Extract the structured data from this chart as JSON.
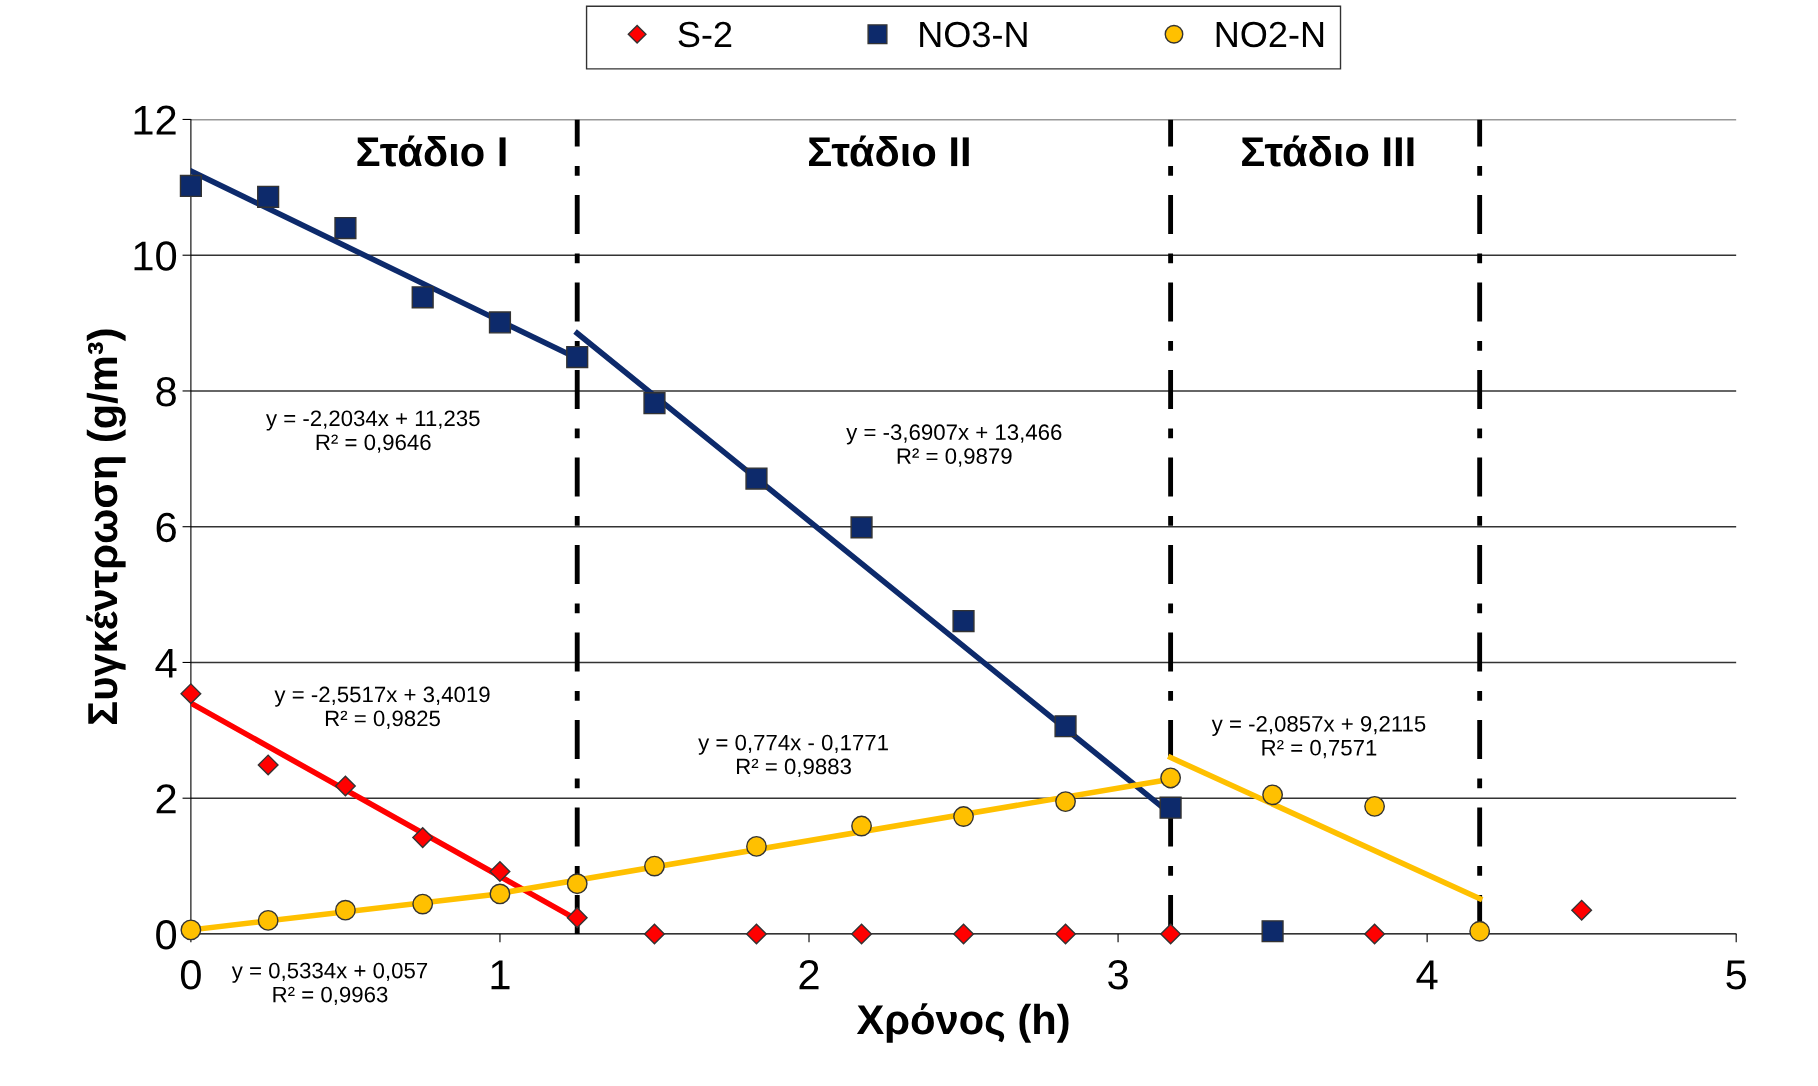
{
  "chart_data": {
    "type": "scatter",
    "xlabel": "Χρόνος (h)",
    "ylabel": "Συγκέντρωση (g/m³)",
    "xlim": [
      0,
      5
    ],
    "ylim": [
      0,
      12
    ],
    "xticks": [
      0,
      1,
      2,
      3,
      4,
      5
    ],
    "yticks": [
      0,
      2,
      4,
      6,
      8,
      10,
      12
    ],
    "grid": "y",
    "legend": "top",
    "series": [
      {
        "name": "S-2",
        "color": "#ff0000",
        "marker": "diamond",
        "x": [
          0,
          0.25,
          0.5,
          0.75,
          1,
          1.25,
          1.5,
          1.83,
          2.17,
          2.5,
          2.83,
          3.17,
          3.83,
          4.5
        ],
        "values": [
          3.54,
          2.49,
          2.18,
          1.42,
          0.92,
          0.24,
          0,
          0,
          0,
          0,
          0,
          0,
          0,
          0.35
        ]
      },
      {
        "name": "NO3-N",
        "color": "#0d2a6b",
        "marker": "square",
        "x": [
          0,
          0.25,
          0.5,
          0.75,
          1,
          1.25,
          1.5,
          1.83,
          2.17,
          2.5,
          2.83,
          3.17,
          3.5
        ],
        "values": [
          11.02,
          10.86,
          10.4,
          9.38,
          9.01,
          8.5,
          7.82,
          6.71,
          5.99,
          4.61,
          3.06,
          1.86,
          0.04
        ]
      },
      {
        "name": "NO2-N",
        "color": "#ffc000",
        "marker": "circle",
        "x": [
          0,
          0.25,
          0.5,
          0.75,
          1,
          1.25,
          1.5,
          1.83,
          2.17,
          2.5,
          2.83,
          3.17,
          3.5,
          3.83,
          4.17
        ],
        "values": [
          0.06,
          0.2,
          0.35,
          0.44,
          0.59,
          0.74,
          1.0,
          1.29,
          1.59,
          1.73,
          1.95,
          2.3,
          2.05,
          1.88,
          0.04
        ]
      },
      {
        "type": "line",
        "color": "#0d2a6b",
        "x": [
          0,
          1.25
        ],
        "values": [
          11.24,
          8.48
        ]
      },
      {
        "type": "line",
        "color": "#0d2a6b",
        "x": [
          1.25,
          3.17
        ],
        "values": [
          8.85,
          1.77
        ]
      },
      {
        "type": "line",
        "color": "#ff0000",
        "x": [
          0,
          1.25
        ],
        "values": [
          3.4,
          0.21
        ]
      },
      {
        "type": "line",
        "color": "#ffc000",
        "x": [
          0,
          1
        ],
        "values": [
          0.06,
          0.59
        ]
      },
      {
        "type": "line",
        "color": "#ffc000",
        "x": [
          1,
          3.17
        ],
        "values": [
          0.6,
          2.28
        ]
      },
      {
        "type": "line",
        "color": "#ffc000",
        "x": [
          3.17,
          4.17
        ],
        "values": [
          2.6,
          0.52
        ]
      }
    ],
    "ref_lines": [
      {
        "axis": "x",
        "value": 1.25,
        "color": "#000000",
        "line_style": "dashed"
      },
      {
        "axis": "x",
        "value": 3.17,
        "color": "#000000",
        "line_style": "dashed"
      },
      {
        "axis": "x",
        "value": 4.17,
        "color": "#000000",
        "line_style": "dashed"
      }
    ],
    "annotations": [
      "Στάδιο I",
      "Στάδιο II",
      "Στάδιο III",
      "y = -2,2034x + 11,235\nR² = 0,9646",
      "y = -3,6907x + 13,466\nR² = 0,9879",
      "y = -2,5517x + 3,4019\nR² = 0,9825",
      "y = 0,774x - 0,1771\nR² = 0,9883",
      "y = -2,0857x + 9,2115\nR² = 0,7571",
      "y = 0,5334x + 0,057\nR² = 0,9963"
    ]
  }
}
